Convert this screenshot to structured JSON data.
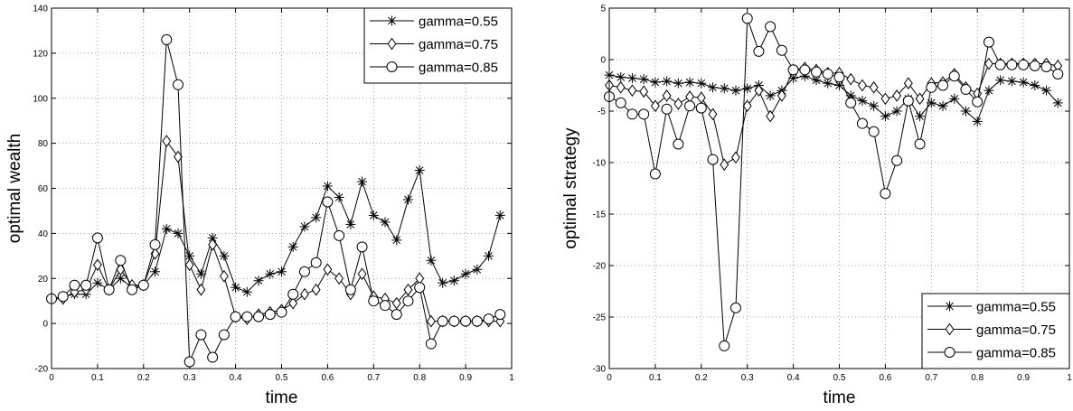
{
  "chart_data": [
    {
      "type": "line",
      "xlabel": "time",
      "ylabel": "optimal wealth",
      "xlim": [
        0,
        1
      ],
      "ylim": [
        -20,
        140
      ],
      "xticks": [
        0,
        0.1,
        0.2,
        0.3,
        0.4,
        0.5,
        0.6,
        0.7,
        0.8,
        0.9,
        1
      ],
      "yticks": [
        -20,
        0,
        20,
        40,
        60,
        80,
        100,
        120,
        140
      ],
      "grid": true,
      "legend_position": "top-right",
      "x": [
        0,
        0.025,
        0.05,
        0.075,
        0.1,
        0.125,
        0.15,
        0.175,
        0.2,
        0.225,
        0.25,
        0.275,
        0.3,
        0.325,
        0.35,
        0.375,
        0.4,
        0.425,
        0.45,
        0.475,
        0.5,
        0.525,
        0.55,
        0.575,
        0.6,
        0.625,
        0.65,
        0.675,
        0.7,
        0.725,
        0.75,
        0.775,
        0.8,
        0.825,
        0.85,
        0.875,
        0.9,
        0.925,
        0.95,
        0.975
      ],
      "series": [
        {
          "name": "gamma=0.55",
          "marker": "star",
          "values": [
            11,
            12,
            13,
            13,
            18,
            15,
            20,
            16,
            17,
            23,
            42,
            40,
            30,
            22,
            38,
            30,
            16,
            14,
            19,
            22,
            23,
            34,
            43,
            47,
            61,
            56,
            44,
            63,
            48,
            45,
            37,
            55,
            68,
            28,
            18,
            19,
            22,
            24,
            30,
            48
          ]
        },
        {
          "name": "gamma=0.75",
          "marker": "diamond",
          "values": [
            11,
            11,
            14,
            15,
            26,
            15,
            24,
            17,
            17,
            31,
            81,
            74,
            26,
            15,
            35,
            21,
            3,
            2,
            4,
            5,
            6,
            9,
            13,
            15,
            24,
            20,
            13,
            22,
            12,
            11,
            9,
            15,
            20,
            1,
            1,
            1,
            1,
            1,
            1,
            1
          ]
        },
        {
          "name": "gamma=0.85",
          "marker": "circle",
          "values": [
            11,
            12,
            17,
            17,
            38,
            15,
            28,
            15,
            17,
            35,
            126,
            106,
            -17,
            -5,
            -15,
            -5,
            3,
            3,
            3,
            4,
            5,
            13,
            23,
            27,
            54,
            39,
            15,
            34,
            10,
            8,
            4,
            10,
            16,
            -9,
            1,
            1,
            1,
            1,
            2,
            4
          ]
        }
      ]
    },
    {
      "type": "line",
      "xlabel": "time",
      "ylabel": "optimal strategy",
      "xlim": [
        0,
        1
      ],
      "ylim": [
        -30,
        5
      ],
      "xticks": [
        0,
        0.1,
        0.2,
        0.3,
        0.4,
        0.5,
        0.6,
        0.7,
        0.8,
        0.9,
        1
      ],
      "yticks": [
        -30,
        -25,
        -20,
        -15,
        -10,
        -5,
        0,
        5
      ],
      "grid": true,
      "legend_position": "bottom-right",
      "x": [
        0,
        0.025,
        0.05,
        0.075,
        0.1,
        0.125,
        0.15,
        0.175,
        0.2,
        0.225,
        0.25,
        0.275,
        0.3,
        0.325,
        0.35,
        0.375,
        0.4,
        0.425,
        0.45,
        0.475,
        0.5,
        0.525,
        0.55,
        0.575,
        0.6,
        0.625,
        0.65,
        0.675,
        0.7,
        0.725,
        0.75,
        0.775,
        0.8,
        0.825,
        0.85,
        0.875,
        0.9,
        0.925,
        0.95,
        0.975
      ],
      "series": [
        {
          "name": "gamma=0.55",
          "marker": "star",
          "values": [
            -1.5,
            -1.7,
            -1.8,
            -1.9,
            -2.2,
            -2.1,
            -2.3,
            -2.2,
            -2.3,
            -2.7,
            -2.8,
            -3.0,
            -2.8,
            -2.5,
            -3.5,
            -3.0,
            -1.8,
            -1.6,
            -2.0,
            -2.3,
            -2.5,
            -3.5,
            -4.0,
            -4.5,
            -5.5,
            -5.0,
            -3.8,
            -5.5,
            -4.2,
            -4.5,
            -3.8,
            -5.0,
            -6.0,
            -3.0,
            -2.0,
            -2.1,
            -2.2,
            -2.5,
            -3.0,
            -4.2
          ]
        },
        {
          "name": "gamma=0.75",
          "marker": "diamond",
          "values": [
            -2.5,
            -2.7,
            -3.0,
            -3.1,
            -4.5,
            -3.5,
            -4.3,
            -3.6,
            -3.7,
            -5.3,
            -10.2,
            -9.5,
            -4.5,
            -3.0,
            -5.5,
            -3.5,
            -1.0,
            -0.8,
            -1.0,
            -1.3,
            -1.3,
            -1.9,
            -2.5,
            -2.7,
            -3.8,
            -3.5,
            -2.3,
            -3.8,
            -2.3,
            -2.2,
            -1.4,
            -2.7,
            -3.3,
            -0.4,
            -0.4,
            -0.4,
            -0.4,
            -0.4,
            -0.4,
            -0.6
          ]
        },
        {
          "name": "gamma=0.85",
          "marker": "circle",
          "values": [
            -3.6,
            -4.2,
            -5.3,
            -5.3,
            -11.1,
            -4.8,
            -8.2,
            -4.5,
            -4.7,
            -9.7,
            -27.8,
            -24.1,
            4.0,
            0.8,
            3.2,
            0.9,
            -1.0,
            -1.0,
            -1.2,
            -1.4,
            -1.7,
            -4.2,
            -6.2,
            -7.0,
            -13.0,
            -9.8,
            -4.0,
            -8.2,
            -2.7,
            -2.5,
            -1.6,
            -2.9,
            -4.1,
            1.7,
            -0.5,
            -0.5,
            -0.5,
            -0.6,
            -0.7,
            -1.4
          ]
        }
      ]
    }
  ]
}
